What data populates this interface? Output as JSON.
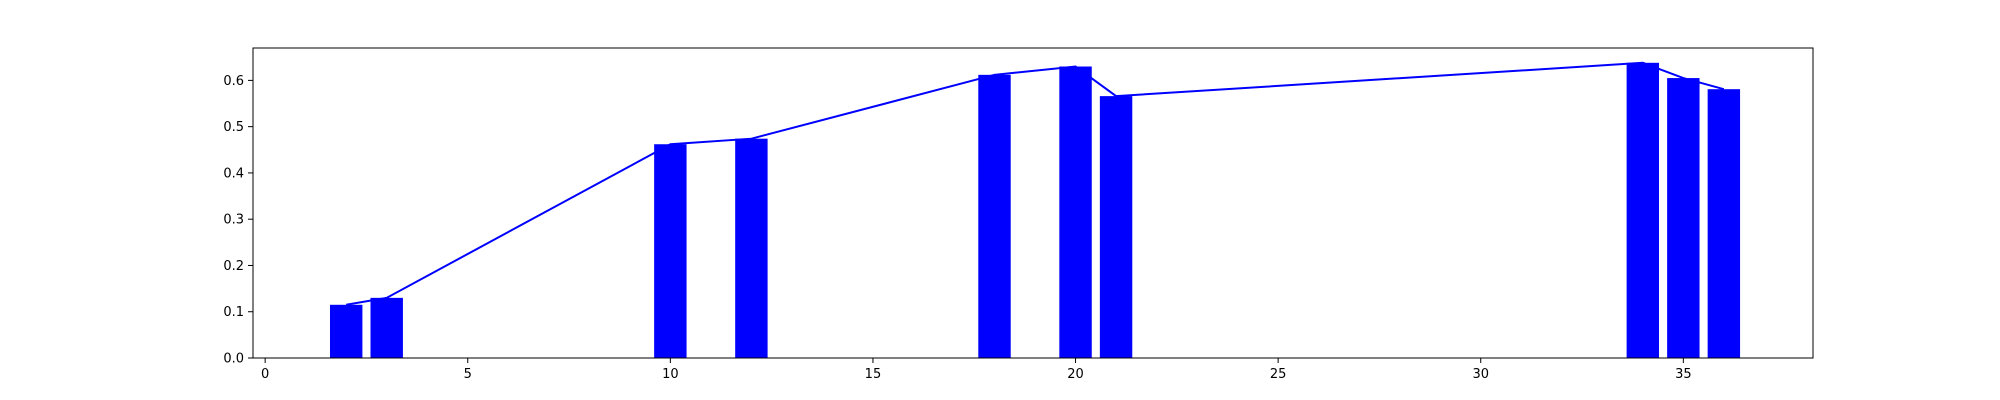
{
  "chart_data": {
    "type": "bar",
    "title": "",
    "xlabel": "",
    "ylabel": "",
    "xlim": [
      -0.3,
      38.2
    ],
    "ylim": [
      0,
      0.67
    ],
    "grid": false,
    "legend": "none",
    "x_ticks": [
      0,
      5,
      10,
      15,
      20,
      25,
      30,
      35
    ],
    "x_tick_labels": [
      "0",
      "5",
      "10",
      "15",
      "20",
      "25",
      "30",
      "35"
    ],
    "y_ticks": [
      0.0,
      0.1,
      0.2,
      0.3,
      0.4,
      0.5,
      0.6
    ],
    "y_tick_labels": [
      "0.0",
      "0.1",
      "0.2",
      "0.3",
      "0.4",
      "0.5",
      "0.6"
    ],
    "bar_width": 0.8,
    "color": "#0000ff",
    "series": [
      {
        "name": "bars",
        "kind": "bar",
        "x": [
          2,
          3,
          10,
          12,
          18,
          20,
          21,
          34,
          35,
          36
        ],
        "values": [
          0.115,
          0.13,
          0.462,
          0.474,
          0.612,
          0.63,
          0.566,
          0.638,
          0.605,
          0.581
        ]
      },
      {
        "name": "line",
        "kind": "line",
        "x": [
          2,
          3,
          10,
          12,
          18,
          20,
          21,
          34,
          35,
          36
        ],
        "values": [
          0.115,
          0.13,
          0.462,
          0.474,
          0.612,
          0.63,
          0.566,
          0.638,
          0.605,
          0.581
        ]
      }
    ]
  }
}
